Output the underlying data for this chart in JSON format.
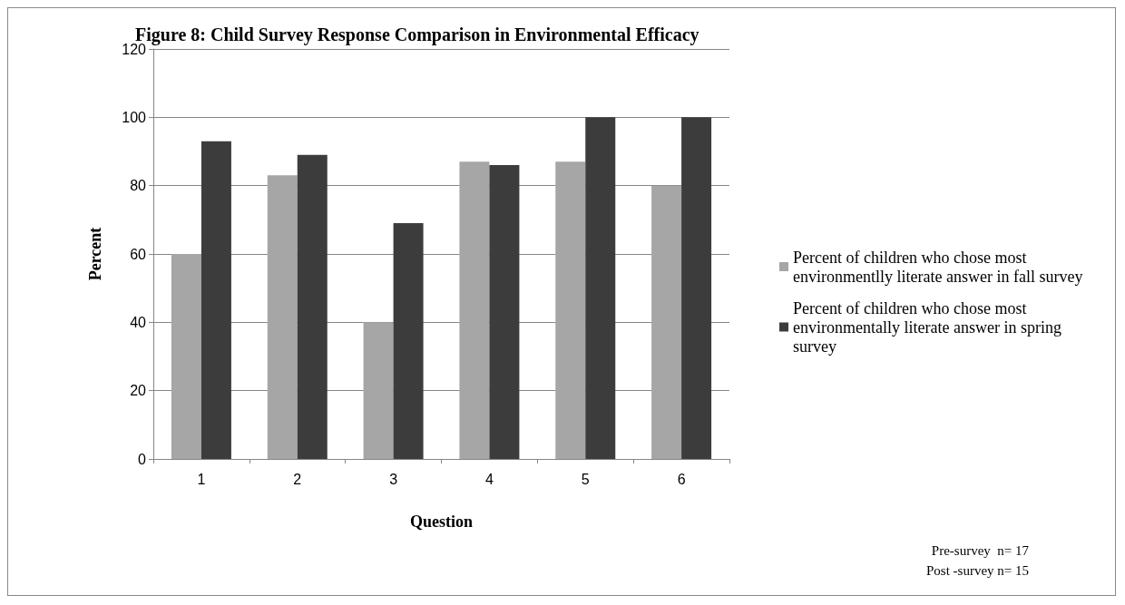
{
  "chart_data": {
    "type": "bar",
    "title": "Figure 8: Child Survey Response Comparison in Environmental Efficacy",
    "xlabel": "Question",
    "ylabel": "Percent",
    "categories": [
      "1",
      "2",
      "3",
      "4",
      "5",
      "6"
    ],
    "series": [
      {
        "name": "Percent of children who chose most environmentlly literate answer in fall survey",
        "color": "#a6a6a6",
        "values": [
          60,
          83,
          40,
          87,
          87,
          80
        ]
      },
      {
        "name": "Percent of children who chose most environmentally literate answer in spring survey",
        "color": "#3c3c3c",
        "values": [
          93,
          89,
          69,
          86,
          100,
          100
        ]
      }
    ],
    "ylim": [
      0,
      120
    ],
    "yticks": [
      0,
      20,
      40,
      60,
      80,
      100,
      120
    ],
    "grid": "y",
    "legend": "right",
    "annotations": [
      "Pre-survey  n= 17",
      "Post -survey n= 15"
    ]
  }
}
